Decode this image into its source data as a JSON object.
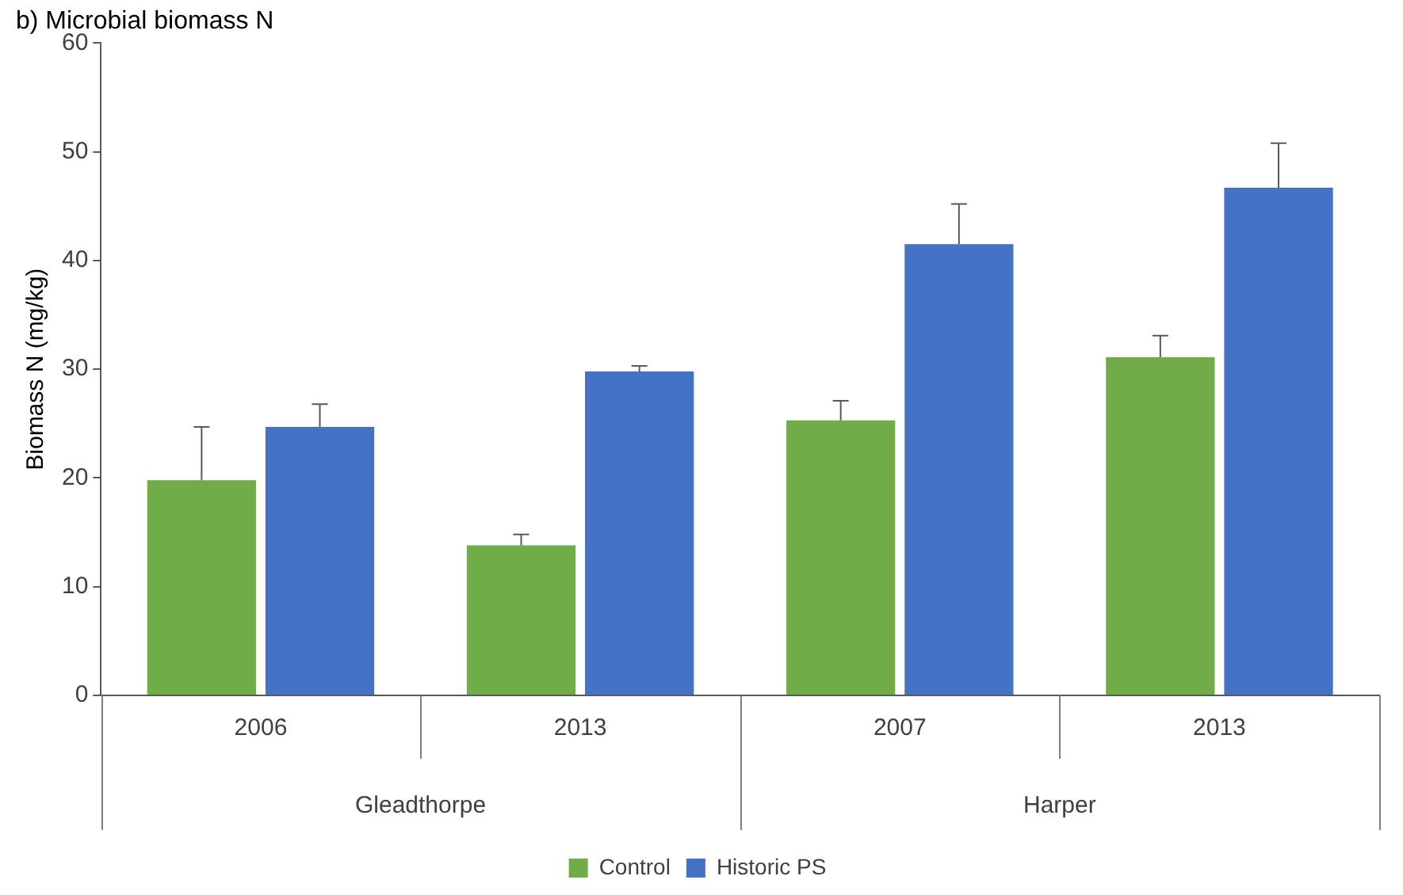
{
  "chart_data": {
    "type": "bar",
    "title": "b) Microbial biomass N",
    "ylabel": "Biomass N (mg/kg)",
    "categories": [
      "2006",
      "2013",
      "2007",
      "2013"
    ],
    "annotations": [
      "Gleadthorpe",
      "Harper"
    ],
    "series": [
      {
        "name": "Control",
        "color": "#70ad47",
        "values": [
          19.8,
          13.8,
          25.3,
          31.1
        ],
        "errors": [
          [
            19.8,
            24.7
          ],
          [
            13.8,
            14.8
          ],
          [
            25.3,
            27.1
          ],
          [
            31.1,
            33.1
          ]
        ]
      },
      {
        "name": "Historic PS",
        "color": "#4472c4",
        "values": [
          24.7,
          29.8,
          41.5,
          46.7
        ],
        "errors": [
          [
            24.7,
            26.8
          ],
          [
            29.8,
            30.3
          ],
          [
            41.5,
            45.2
          ],
          [
            46.7,
            50.8
          ]
        ]
      }
    ],
    "ylim": [
      0,
      60
    ],
    "yticks": [
      0,
      10,
      20,
      30,
      40,
      50,
      60
    ],
    "grid": false,
    "legend": "bottom"
  }
}
